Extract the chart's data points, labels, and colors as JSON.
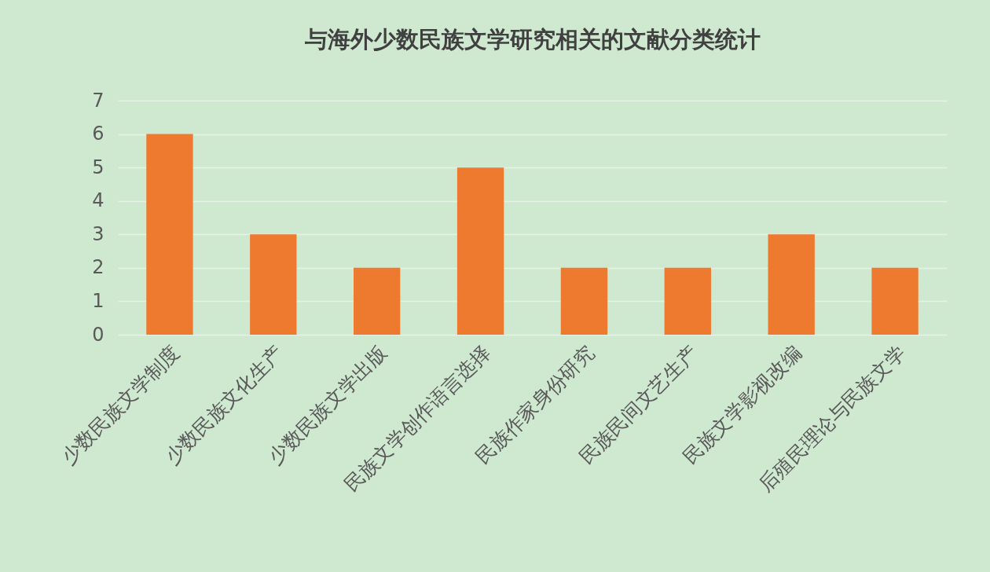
{
  "chart_data": {
    "type": "bar",
    "title": "与海外少数民族文学研究相关的文献分类统计",
    "categories": [
      "少数民族文学制度",
      "少数民族文化生产",
      "少数民族文学出版",
      "民族文学创作语言选择",
      "民族作家身份研究",
      "民族民间文艺生产",
      "民族文学影视改编",
      "后殖民理论与民族文学"
    ],
    "values": [
      6,
      3,
      2,
      5,
      2,
      2,
      3,
      2
    ],
    "color": "#ee7a2f",
    "ylim": [
      0,
      7
    ],
    "yticks": [
      0,
      1,
      2,
      3,
      4,
      5,
      6,
      7
    ],
    "grid": "y"
  }
}
